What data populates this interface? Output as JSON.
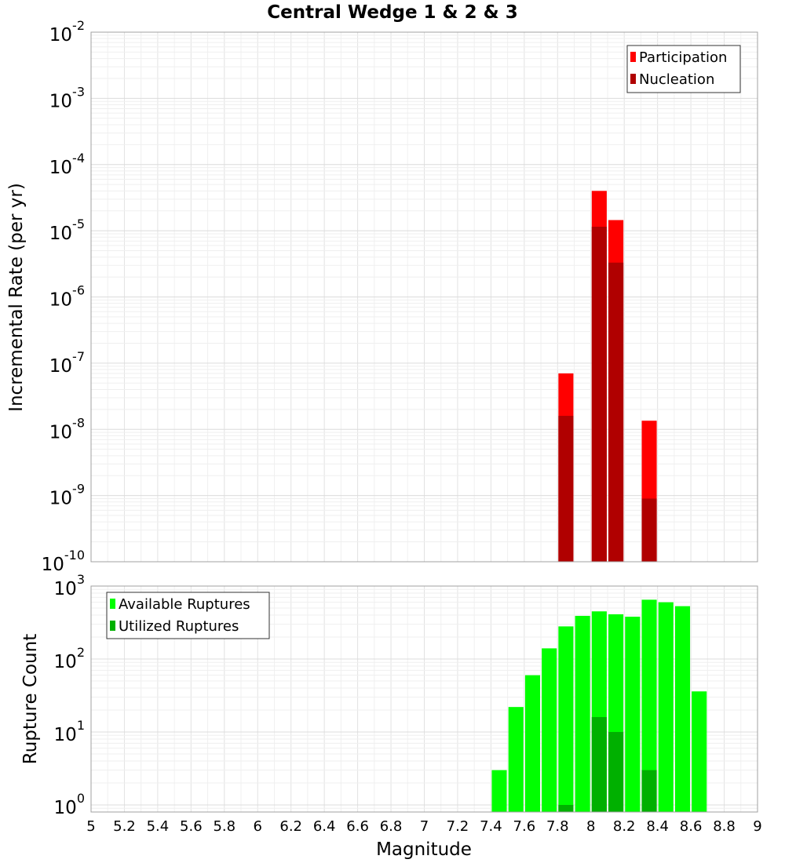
{
  "chart_data": [
    {
      "type": "bar",
      "title": "Central Wedge 1 & 2 & 3",
      "ylabel": "Incremental Rate (per yr)",
      "xlabel": "",
      "xlim": [
        5,
        9
      ],
      "ylim": [
        1e-10,
        0.01
      ],
      "yscale": "log",
      "bar_width": 0.09,
      "y_ticks": [
        {
          "base": "10",
          "exp": "-10"
        },
        {
          "base": "10",
          "exp": "-9"
        },
        {
          "base": "10",
          "exp": "-8"
        },
        {
          "base": "10",
          "exp": "-7"
        },
        {
          "base": "10",
          "exp": "-6"
        },
        {
          "base": "10",
          "exp": "-5"
        },
        {
          "base": "10",
          "exp": "-4"
        },
        {
          "base": "10",
          "exp": "-3"
        },
        {
          "base": "10",
          "exp": "-2"
        }
      ],
      "legend": {
        "position": "top-right",
        "entries": [
          "Participation",
          "Nucleation"
        ]
      },
      "series": [
        {
          "name": "Participation",
          "color": "#ff0000",
          "x": [
            7.85,
            8.05,
            8.15,
            8.35
          ],
          "values": [
            7e-08,
            4e-05,
            1.45e-05,
            1.35e-08
          ]
        },
        {
          "name": "Nucleation",
          "color": "#b00000",
          "x": [
            7.85,
            8.05,
            8.15,
            8.35
          ],
          "values": [
            1.6e-08,
            1.15e-05,
            3.3e-06,
            9e-10
          ]
        }
      ]
    },
    {
      "type": "bar",
      "title": "",
      "ylabel": "Rupture Count",
      "xlabel": "Magnitude",
      "xlim": [
        5,
        9
      ],
      "ylim": [
        0.8,
        1000
      ],
      "yscale": "log",
      "bar_width": 0.09,
      "y_ticks": [
        {
          "base": "10",
          "exp": "0"
        },
        {
          "base": "10",
          "exp": "1"
        },
        {
          "base": "10",
          "exp": "2"
        },
        {
          "base": "10",
          "exp": "3"
        }
      ],
      "x_ticks": [
        "5",
        "5.2",
        "5.4",
        "5.6",
        "5.8",
        "6",
        "6.2",
        "6.4",
        "6.6",
        "6.8",
        "7",
        "7.2",
        "7.4",
        "7.6",
        "7.8",
        "8",
        "8.2",
        "8.4",
        "8.6",
        "8.8",
        "9"
      ],
      "legend": {
        "position": "top-left",
        "entries": [
          "Available Ruptures",
          "Utilized Ruptures"
        ]
      },
      "series": [
        {
          "name": "Available Ruptures",
          "color": "#00ff00",
          "x": [
            7.45,
            7.55,
            7.65,
            7.75,
            7.85,
            7.95,
            8.05,
            8.15,
            8.25,
            8.35,
            8.45,
            8.55,
            8.65
          ],
          "values": [
            3,
            22,
            60,
            140,
            280,
            390,
            450,
            410,
            380,
            650,
            600,
            530,
            36
          ]
        },
        {
          "name": "Utilized Ruptures",
          "color": "#00b000",
          "x": [
            7.85,
            8.05,
            8.15,
            8.35
          ],
          "values": [
            1,
            16,
            10,
            3
          ]
        }
      ]
    }
  ]
}
